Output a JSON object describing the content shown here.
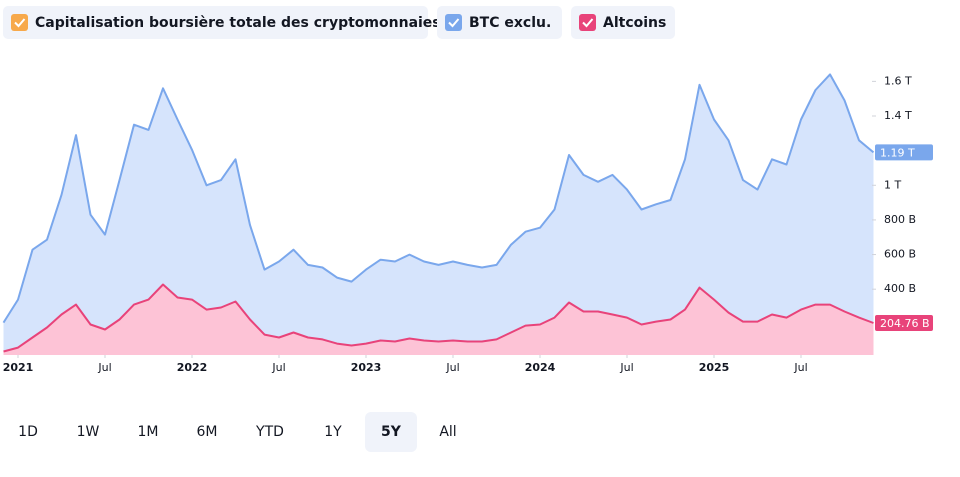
{
  "chart_data": {
    "type": "area",
    "legend_extra": {
      "name": "Capitalisation boursière totale des cryptomonnaies",
      "color": "#f7a94b"
    },
    "x": [
      "2020-12",
      "2021-01",
      "2021-02",
      "2021-03",
      "2021-04",
      "2021-05",
      "2021-06",
      "2021-07",
      "2021-08",
      "2021-09",
      "2021-10",
      "2021-11",
      "2021-12",
      "2022-01",
      "2022-02",
      "2022-03",
      "2022-04",
      "2022-05",
      "2022-06",
      "2022-07",
      "2022-08",
      "2022-09",
      "2022-10",
      "2022-11",
      "2022-12",
      "2023-01",
      "2023-02",
      "2023-03",
      "2023-04",
      "2023-05",
      "2023-06",
      "2023-07",
      "2023-08",
      "2023-09",
      "2023-10",
      "2023-11",
      "2023-12",
      "2024-01",
      "2024-02",
      "2024-03",
      "2024-04",
      "2024-05",
      "2024-06",
      "2024-07",
      "2024-08",
      "2024-09",
      "2024-10",
      "2024-11",
      "2024-12",
      "2025-01",
      "2025-02",
      "2025-03",
      "2025-04",
      "2025-05",
      "2025-06",
      "2025-07",
      "2025-08",
      "2025-09",
      "2025-10",
      "2025-11",
      "2025-12"
    ],
    "series": [
      {
        "name": "BTC exclu.",
        "color": "#7aa7ec",
        "fill": "#d6e4fc",
        "values": [
          207,
          340,
          628,
          686,
          945,
          1290,
          830,
          715,
          1030,
          1350,
          1320,
          1560,
          1380,
          1205,
          1000,
          1030,
          1150,
          770,
          513,
          560,
          628,
          540,
          525,
          467,
          444,
          513,
          570,
          560,
          600,
          560,
          540,
          560,
          540,
          525,
          540,
          657,
          732,
          755,
          860,
          1175,
          1060,
          1020,
          1060,
          975,
          860,
          890,
          915,
          1150,
          1580,
          1380,
          1260,
          1030,
          975,
          1150,
          1120,
          1380,
          1550,
          1640,
          1490,
          1260,
          1190
        ],
        "value_labels": [
          null,
          null,
          null,
          null,
          null,
          null,
          null,
          null,
          null,
          null,
          null,
          null,
          null,
          null,
          null,
          null,
          null,
          null,
          null,
          null,
          null,
          null,
          null,
          null,
          null,
          null,
          null,
          null,
          null,
          null,
          null,
          null,
          null,
          null,
          null,
          null,
          null,
          null,
          null,
          null,
          null,
          null,
          null,
          null,
          null,
          null,
          null,
          null,
          null,
          null,
          null,
          null,
          null,
          null,
          null,
          null,
          null,
          null,
          null,
          null,
          "1.19 T"
        ]
      },
      {
        "name": "Altcoins",
        "color": "#e8437a",
        "fill": "#fdc3d6",
        "values": [
          40,
          63,
          121,
          179,
          254,
          311,
          196,
          167,
          225,
          311,
          340,
          427,
          352,
          340,
          282,
          294,
          329,
          225,
          138,
          121,
          150,
          121,
          110,
          86,
          75,
          86,
          104,
          98,
          115,
          104,
          98,
          104,
          98,
          98,
          110,
          150,
          190,
          196,
          236,
          323,
          271,
          271,
          254,
          236,
          196,
          213,
          225,
          282,
          409,
          340,
          265,
          213,
          213,
          254,
          236,
          282,
          311,
          311,
          271,
          236,
          204.76
        ],
        "value_labels": [
          null,
          null,
          null,
          null,
          null,
          null,
          null,
          null,
          null,
          null,
          null,
          null,
          null,
          null,
          null,
          null,
          null,
          null,
          null,
          null,
          null,
          null,
          null,
          null,
          null,
          null,
          null,
          null,
          null,
          null,
          null,
          null,
          null,
          null,
          null,
          null,
          null,
          null,
          null,
          null,
          null,
          null,
          null,
          null,
          null,
          null,
          null,
          null,
          null,
          null,
          null,
          null,
          null,
          null,
          null,
          null,
          null,
          null,
          null,
          null,
          "204.76 B"
        ]
      }
    ],
    "ylim": [
      20,
      1810
    ],
    "yticks": [
      {
        "value": 400,
        "label": "400 B"
      },
      {
        "value": 600,
        "label": "600 B"
      },
      {
        "value": 800,
        "label": "800 B"
      },
      {
        "value": 1000,
        "label": "1 T"
      },
      {
        "value": 1400,
        "label": "1.4 T"
      },
      {
        "value": 1600,
        "label": "1.6 T"
      }
    ],
    "xticks": [
      {
        "value": "2021-01",
        "label": "2021"
      },
      {
        "value": "2021-07",
        "label": "Jul"
      },
      {
        "value": "2022-01",
        "label": "2022"
      },
      {
        "value": "2022-07",
        "label": "Jul"
      },
      {
        "value": "2023-01",
        "label": "2023"
      },
      {
        "value": "2023-07",
        "label": "Jul"
      },
      {
        "value": "2024-01",
        "label": "2024"
      },
      {
        "value": "2024-07",
        "label": "Jul"
      },
      {
        "value": "2025-01",
        "label": "2025"
      },
      {
        "value": "2025-07",
        "label": "Jul"
      }
    ],
    "grid": false,
    "range_buttons": [
      "1D",
      "1W",
      "1M",
      "6M",
      "YTD",
      "1Y",
      "5Y",
      "All"
    ],
    "range_selected": 6
  }
}
